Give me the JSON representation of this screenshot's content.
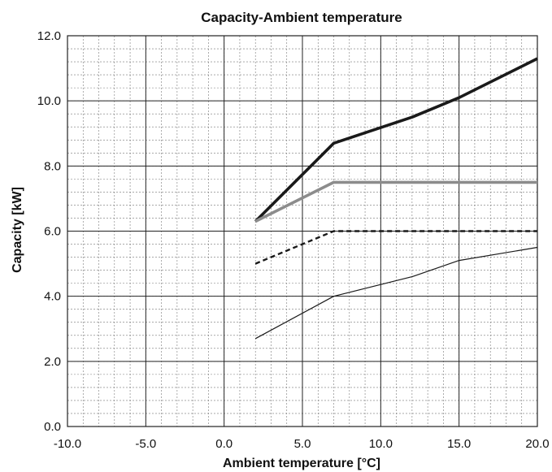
{
  "chart_data": {
    "type": "line",
    "title": "Capacity-Ambient temperature",
    "xlabel": "Ambient temperature [°C]",
    "ylabel": "Capacity [kW]",
    "xlim": [
      -10,
      20
    ],
    "ylim": [
      0,
      12
    ],
    "x_ticks": [
      -10,
      -5,
      0,
      5,
      10,
      15,
      20
    ],
    "x_tick_labels": [
      "-10.0",
      "-5.0",
      "0.0",
      "5.0",
      "10.0",
      "15.0",
      "20.0"
    ],
    "y_ticks": [
      0,
      2,
      4,
      6,
      8,
      10,
      12
    ],
    "y_tick_labels": [
      "0.0",
      "2.0",
      "4.0",
      "6.0",
      "8.0",
      "10.0",
      "12.0"
    ],
    "minor_grid_step_x": 1,
    "minor_grid_step_y": 0.4,
    "grid": true,
    "series": [
      {
        "style": "thick-black",
        "color": "#1a1a1a",
        "x": [
          2,
          7,
          12,
          15,
          20
        ],
        "y": [
          6.3,
          8.7,
          9.5,
          10.1,
          11.3
        ]
      },
      {
        "style": "thick-gray",
        "color": "#8c8c8c",
        "x": [
          2,
          7,
          20
        ],
        "y": [
          6.3,
          7.5,
          7.5
        ]
      },
      {
        "style": "dashed-black",
        "color": "#1a1a1a",
        "x": [
          2,
          7,
          20
        ],
        "y": [
          5.0,
          6.0,
          6.0
        ]
      },
      {
        "style": "thin-black",
        "color": "#1a1a1a",
        "x": [
          2,
          7,
          12,
          15,
          20
        ],
        "y": [
          2.7,
          4.0,
          4.6,
          5.1,
          5.5
        ]
      }
    ]
  }
}
